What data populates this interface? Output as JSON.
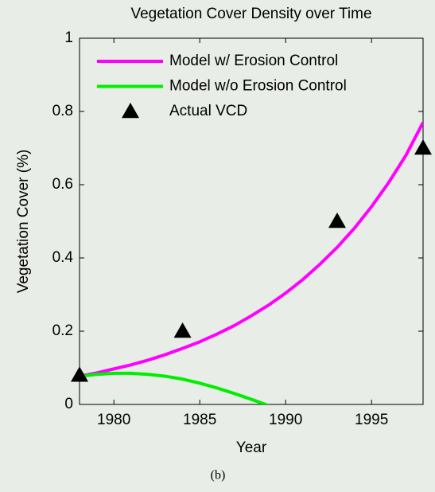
{
  "chart_data": {
    "type": "line",
    "title": "Vegetation Cover Density over Time",
    "xlabel": "Year",
    "ylabel": "Vegetation Cover (%)",
    "caption": "(b)",
    "xlim": [
      1978,
      1998
    ],
    "xticks": [
      1980,
      1985,
      1990,
      1995
    ],
    "ylim": [
      0,
      1
    ],
    "yticks": [
      0,
      0.2,
      0.4,
      0.6,
      0.8,
      1
    ],
    "legend": "upper left",
    "series": [
      {
        "name": "Model w/ Erosion Control",
        "color": "#ff00ff",
        "marker": "line",
        "x": [
          1978,
          1979,
          1980,
          1981,
          1982,
          1983,
          1984,
          1985,
          1986,
          1987,
          1988,
          1989,
          1990,
          1991,
          1992,
          1993,
          1994,
          1995,
          1996,
          1997,
          1998
        ],
        "values": [
          0.077,
          0.086,
          0.097,
          0.108,
          0.121,
          0.136,
          0.153,
          0.171,
          0.192,
          0.215,
          0.242,
          0.271,
          0.304,
          0.341,
          0.383,
          0.429,
          0.481,
          0.54,
          0.606,
          0.68,
          0.77
        ]
      },
      {
        "name": "Model w/o Erosion Control",
        "color": "#00ee00",
        "marker": "line",
        "x": [
          1978,
          1979,
          1980,
          1981,
          1982,
          1983,
          1984,
          1985,
          1986,
          1987,
          1988,
          1989
        ],
        "values": [
          0.077,
          0.082,
          0.085,
          0.085,
          0.082,
          0.077,
          0.069,
          0.058,
          0.045,
          0.03,
          0.014,
          -0.003
        ]
      },
      {
        "name": "Actual VCD",
        "color": "#000000",
        "marker": "triangle",
        "x": [
          1978,
          1984,
          1993,
          1998
        ],
        "values": [
          0.08,
          0.2,
          0.5,
          0.7
        ]
      }
    ]
  }
}
